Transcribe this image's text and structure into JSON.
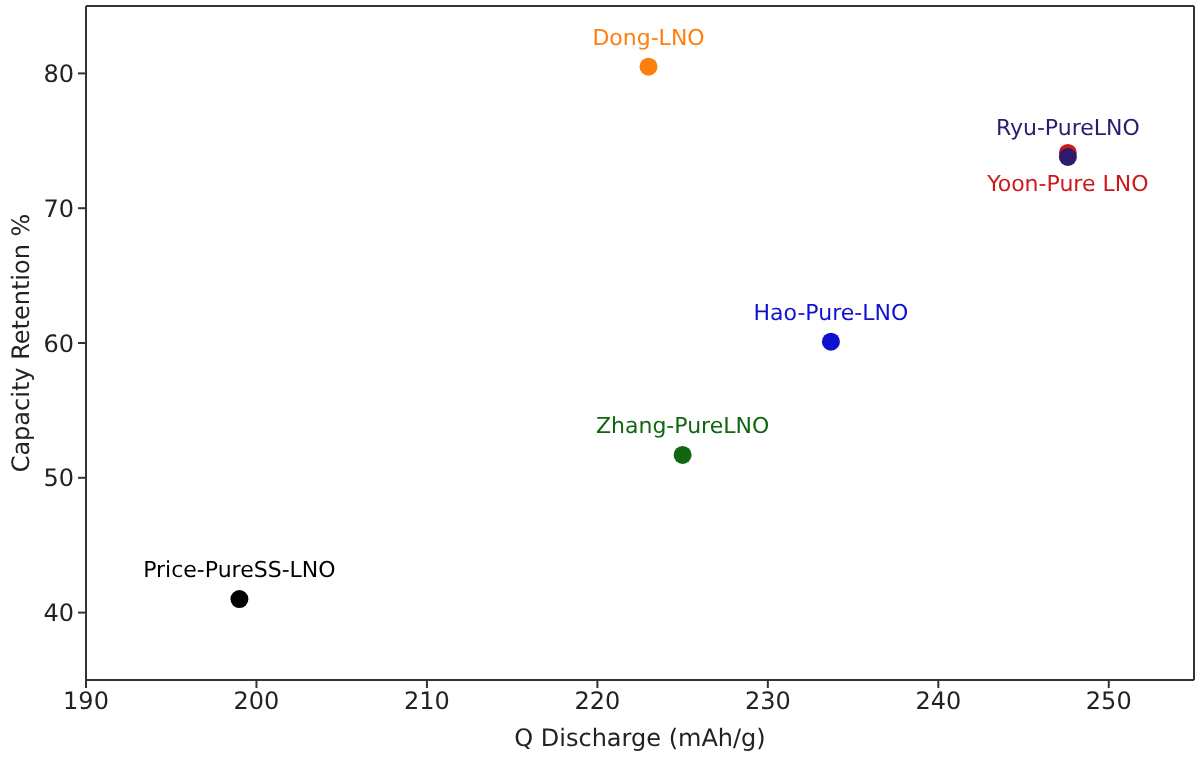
{
  "chart_data": {
    "type": "scatter",
    "xlabel": "Q Discharge (mAh/g)",
    "ylabel": "Capacity Retention %",
    "xlim": [
      190,
      255
    ],
    "ylim": [
      35,
      85
    ],
    "xticks": [
      190,
      200,
      210,
      220,
      230,
      240,
      250
    ],
    "yticks": [
      40,
      50,
      60,
      70,
      80
    ],
    "grid": false,
    "legend": false,
    "marker": "circle",
    "series": [
      {
        "name": "Price-PureSS-LNO",
        "color": "#000000",
        "x": [
          199.0
        ],
        "values": [
          41.0
        ]
      },
      {
        "name": "Dong-LNO",
        "color": "#ff7f0e",
        "x": [
          223.0
        ],
        "values": [
          80.5
        ]
      },
      {
        "name": "Yoon-Pure LNO",
        "color": "#cc1a1a",
        "x": [
          247.6
        ],
        "values": [
          74.1
        ]
      },
      {
        "name": "Ryu-PureLNO",
        "color": "#2e1a6e",
        "x": [
          247.6
        ],
        "values": [
          73.8
        ]
      },
      {
        "name": "Hao-Pure-LNO",
        "color": "#1010d0",
        "x": [
          233.7
        ],
        "values": [
          60.1
        ]
      },
      {
        "name": "Zhang-PureLNO",
        "color": "#116611",
        "x": [
          225.0
        ],
        "values": [
          51.7
        ]
      }
    ]
  }
}
